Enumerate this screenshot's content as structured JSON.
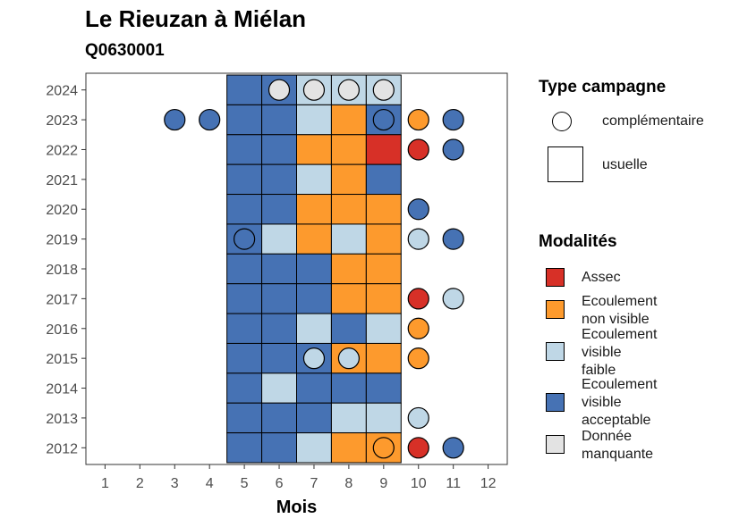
{
  "title": "Le Rieuzan à Miélan",
  "subtitle": "Q0630001",
  "legend": {
    "type_title": "Type campagne",
    "type_items": [
      {
        "shape": "circle",
        "label": "complémentaire"
      },
      {
        "shape": "square",
        "label": "usuelle"
      }
    ],
    "modalite_title": "Modalités",
    "modalites": [
      {
        "key": "assec",
        "lines": [
          "Assec"
        ],
        "color": "#d73027"
      },
      {
        "key": "nonvisible",
        "lines": [
          "Ecoulement",
          "non visible"
        ],
        "color": "#fd9a2d"
      },
      {
        "key": "faible",
        "lines": [
          "Ecoulement",
          "visible",
          "faible"
        ],
        "color": "#bfd7e6"
      },
      {
        "key": "acceptable",
        "lines": [
          "Ecoulement",
          "visible",
          "acceptable"
        ],
        "color": "#4672b4"
      },
      {
        "key": "manquante",
        "lines": [
          "Donnée",
          "manquante"
        ],
        "color": "#e3e3e3"
      }
    ]
  },
  "chart_data": {
    "type": "heatmap",
    "title": "Le Rieuzan à Miélan",
    "subtitle": "Q0630001",
    "xlabel": "Mois",
    "ylabel": "",
    "x_ticks": [
      1,
      2,
      3,
      4,
      5,
      6,
      7,
      8,
      9,
      10,
      11,
      12
    ],
    "y_ticks": [
      2012,
      2013,
      2014,
      2015,
      2016,
      2017,
      2018,
      2019,
      2020,
      2021,
      2022,
      2023,
      2024
    ],
    "usual_months": [
      5,
      6,
      7,
      8,
      9
    ],
    "colors": {
      "assec": "#d73027",
      "nonvisible": "#fd9a2d",
      "faible": "#bfd7e6",
      "acceptable": "#4672b4",
      "manquante": "#e3e3e3"
    },
    "usuelle": [
      {
        "year": 2024,
        "months": [
          "acceptable",
          "acceptable",
          "faible",
          "faible",
          "faible"
        ]
      },
      {
        "year": 2023,
        "months": [
          "acceptable",
          "acceptable",
          "faible",
          "nonvisible",
          "acceptable"
        ]
      },
      {
        "year": 2022,
        "months": [
          "acceptable",
          "acceptable",
          "nonvisible",
          "nonvisible",
          "assec"
        ]
      },
      {
        "year": 2021,
        "months": [
          "acceptable",
          "acceptable",
          "faible",
          "nonvisible",
          "acceptable"
        ]
      },
      {
        "year": 2020,
        "months": [
          "acceptable",
          "acceptable",
          "nonvisible",
          "nonvisible",
          "nonvisible"
        ]
      },
      {
        "year": 2019,
        "months": [
          "acceptable",
          "faible",
          "nonvisible",
          "faible",
          "nonvisible"
        ]
      },
      {
        "year": 2018,
        "months": [
          "acceptable",
          "acceptable",
          "acceptable",
          "nonvisible",
          "nonvisible"
        ]
      },
      {
        "year": 2017,
        "months": [
          "acceptable",
          "acceptable",
          "acceptable",
          "nonvisible",
          "nonvisible"
        ]
      },
      {
        "year": 2016,
        "months": [
          "acceptable",
          "acceptable",
          "faible",
          "acceptable",
          "faible"
        ]
      },
      {
        "year": 2015,
        "months": [
          "acceptable",
          "acceptable",
          "acceptable",
          "nonvisible",
          "nonvisible"
        ]
      },
      {
        "year": 2014,
        "months": [
          "acceptable",
          "faible",
          "acceptable",
          "acceptable",
          "acceptable"
        ]
      },
      {
        "year": 2013,
        "months": [
          "acceptable",
          "acceptable",
          "acceptable",
          "faible",
          "faible"
        ]
      },
      {
        "year": 2012,
        "months": [
          "acceptable",
          "acceptable",
          "faible",
          "nonvisible",
          "nonvisible"
        ]
      }
    ],
    "complementaire": [
      {
        "year": 2024,
        "month": 6,
        "value": "manquante"
      },
      {
        "year": 2024,
        "month": 7,
        "value": "manquante"
      },
      {
        "year": 2024,
        "month": 8,
        "value": "manquante"
      },
      {
        "year": 2024,
        "month": 9,
        "value": "manquante"
      },
      {
        "year": 2023,
        "month": 3,
        "value": "acceptable"
      },
      {
        "year": 2023,
        "month": 4,
        "value": "acceptable"
      },
      {
        "year": 2023,
        "month": 9,
        "value": "acceptable"
      },
      {
        "year": 2023,
        "month": 10,
        "value": "nonvisible"
      },
      {
        "year": 2023,
        "month": 11,
        "value": "acceptable"
      },
      {
        "year": 2022,
        "month": 10,
        "value": "assec"
      },
      {
        "year": 2022,
        "month": 11,
        "value": "acceptable"
      },
      {
        "year": 2020,
        "month": 10,
        "value": "acceptable"
      },
      {
        "year": 2019,
        "month": 5,
        "value": "acceptable"
      },
      {
        "year": 2019,
        "month": 10,
        "value": "faible"
      },
      {
        "year": 2019,
        "month": 11,
        "value": "acceptable"
      },
      {
        "year": 2017,
        "month": 10,
        "value": "assec"
      },
      {
        "year": 2017,
        "month": 11,
        "value": "faible"
      },
      {
        "year": 2016,
        "month": 10,
        "value": "nonvisible"
      },
      {
        "year": 2015,
        "month": 7,
        "value": "faible"
      },
      {
        "year": 2015,
        "month": 8,
        "value": "faible"
      },
      {
        "year": 2015,
        "month": 10,
        "value": "nonvisible"
      },
      {
        "year": 2013,
        "month": 10,
        "value": "faible"
      },
      {
        "year": 2012,
        "month": 9,
        "value": "nonvisible"
      },
      {
        "year": 2012,
        "month": 10,
        "value": "assec"
      },
      {
        "year": 2012,
        "month": 11,
        "value": "acceptable"
      }
    ]
  }
}
